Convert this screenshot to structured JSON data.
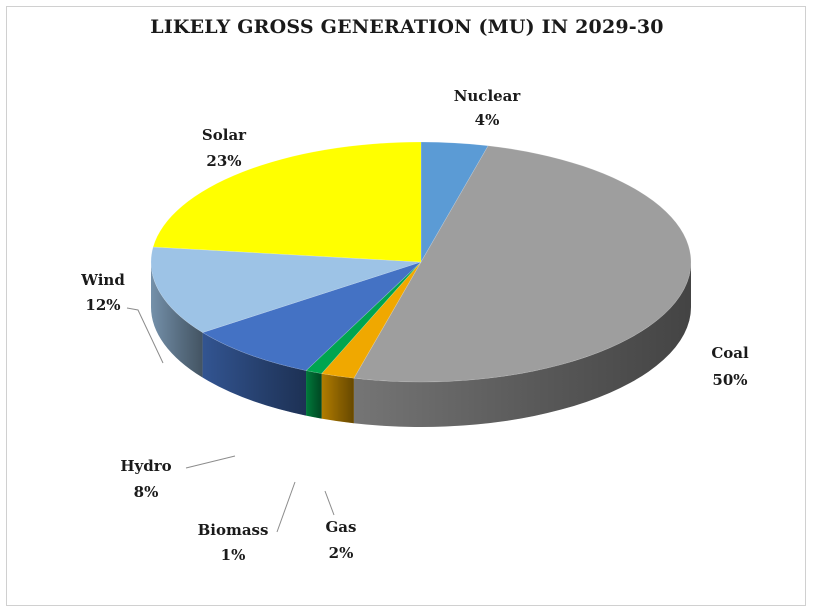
{
  "chart_data": {
    "type": "pie",
    "title": "LIKELY GROSS GENERATION (MU) IN 2029-30",
    "slices": [
      {
        "label": "Nuclear",
        "value": 4,
        "display": "4%",
        "color": "#5b9bd5"
      },
      {
        "label": "Coal",
        "value": 50,
        "display": "50%",
        "color": "#9e9e9e"
      },
      {
        "label": "Gas",
        "value": 2,
        "display": "2%",
        "color": "#f0a800"
      },
      {
        "label": "Biomass",
        "value": 1,
        "display": "1%",
        "color": "#00a550"
      },
      {
        "label": "Hydro",
        "value": 8,
        "display": "8%",
        "color": "#4472c4"
      },
      {
        "label": "Wind",
        "value": 12,
        "display": "12%",
        "color": "#9dc3e6"
      },
      {
        "label": "Solar",
        "value": 23,
        "display": "23%",
        "color": "#ffff00"
      }
    ]
  }
}
